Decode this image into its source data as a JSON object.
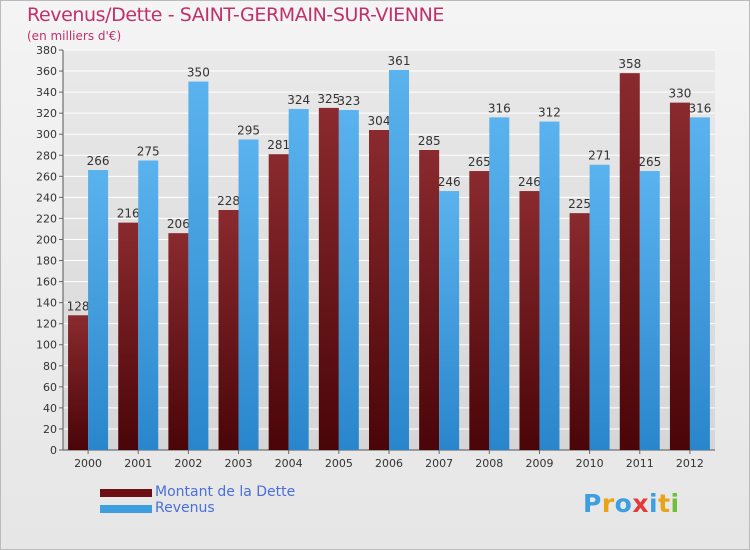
{
  "header": {
    "title": "Revenus/Dette - SAINT-GERMAIN-SUR-VIENNE",
    "subtitle": "(en milliers d'€)"
  },
  "colors": {
    "dette": "#7a1a1f",
    "revenus": "#3d9ee0",
    "grid": "#ffffff",
    "axis_text": "#333333",
    "legend_text": "#4a6fd8",
    "title": "#c0306b"
  },
  "legend": [
    {
      "label": "Montant de la Dette",
      "color": "#6b0f14"
    },
    {
      "label": "Revenus",
      "color": "#3d9ee0"
    }
  ],
  "logo": {
    "text": "Proxiti",
    "letters": [
      {
        "ch": "P",
        "color": "#3d9ee0"
      },
      {
        "ch": "r",
        "color": "#e8a317"
      },
      {
        "ch": "o",
        "color": "#3d9ee0"
      },
      {
        "ch": "x",
        "color": "#e23b3b"
      },
      {
        "ch": "i",
        "color": "#3d9ee0"
      },
      {
        "ch": "t",
        "color": "#e8a317"
      },
      {
        "ch": "i",
        "color": "#6fbf3a"
      }
    ]
  },
  "chart_data": {
    "type": "bar",
    "categories": [
      "2000",
      "2001",
      "2002",
      "2003",
      "2004",
      "2005",
      "2006",
      "2007",
      "2008",
      "2009",
      "2010",
      "2011",
      "2012"
    ],
    "series": [
      {
        "name": "Montant de la Dette",
        "values": [
          128,
          216,
          206,
          228,
          281,
          325,
          304,
          285,
          265,
          246,
          225,
          358,
          330
        ]
      },
      {
        "name": "Revenus",
        "values": [
          266,
          275,
          350,
          295,
          324,
          323,
          361,
          246,
          316,
          312,
          271,
          265,
          316
        ]
      }
    ],
    "ylim": [
      0,
      380
    ],
    "yticks": [
      0,
      20,
      40,
      60,
      80,
      100,
      120,
      140,
      160,
      180,
      200,
      220,
      240,
      260,
      280,
      300,
      320,
      340,
      360,
      380
    ],
    "grid": true,
    "legend_position": "bottom-left"
  }
}
